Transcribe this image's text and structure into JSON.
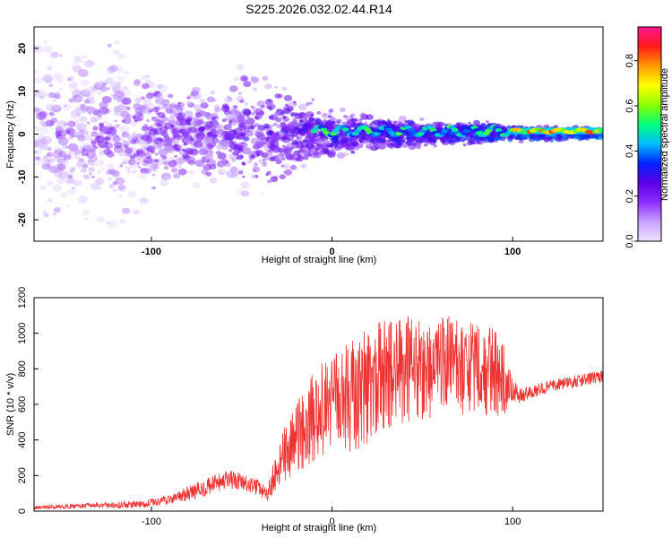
{
  "chart_data": [
    {
      "type": "heatmap",
      "title": "S225.2026.032.02.44.R14",
      "xlabel": "Height of straight line (km)",
      "ylabel": "Frequency (Hz)",
      "xlim": [
        -165,
        150
      ],
      "ylim": [
        -25,
        25
      ],
      "x_ticks": [
        -100,
        0,
        100
      ],
      "y_ticks": [
        -20,
        -10,
        0,
        10,
        20
      ],
      "x_tick_labels": [
        "-100",
        "0",
        "100"
      ],
      "y_tick_labels": [
        "-20",
        "-10",
        "0",
        "10",
        "20"
      ],
      "colorbar": {
        "label": "Normalized spectral amplitude",
        "range": [
          0,
          0.95
        ],
        "ticks": [
          0,
          0.2,
          0.4,
          0.6,
          0.8
        ],
        "tick_labels": [
          "0.0",
          "0.2",
          "0.4",
          "0.6",
          "0.8"
        ],
        "colors": [
          "#f0e5ff",
          "#c8a2ff",
          "#8b2cff",
          "#5a00e6",
          "#0022ff",
          "#00bfff",
          "#00ff7a",
          "#8cff00",
          "#ffff00",
          "#ff9900",
          "#ff1a1a",
          "#ff1493"
        ]
      },
      "ridge_frequency_hz": 0.7,
      "ridge_band": [
        0,
        1.5
      ],
      "scatter_envelope_hz": [
        [
          -165,
          24
        ],
        [
          -140,
          24
        ],
        [
          -120,
          21
        ],
        [
          -100,
          16
        ],
        [
          -80,
          12
        ],
        [
          -60,
          12
        ],
        [
          -40,
          16
        ],
        [
          -20,
          10
        ],
        [
          0,
          6
        ],
        [
          20,
          4
        ],
        [
          40,
          4
        ],
        [
          60,
          3
        ],
        [
          80,
          3
        ],
        [
          100,
          2
        ],
        [
          150,
          1.5
        ]
      ]
    },
    {
      "type": "line",
      "title": "",
      "xlabel": "Height of straight line (km)",
      "ylabel": "SNR (10 * v/v)",
      "xlim": [
        -165,
        150
      ],
      "ylim": [
        0,
        1200
      ],
      "x_ticks": [
        -100,
        0,
        100
      ],
      "y_ticks": [
        0,
        200,
        400,
        600,
        800,
        1000,
        1200
      ],
      "x_tick_labels": [
        "-100",
        "0",
        "100"
      ],
      "y_tick_labels": [
        "0",
        "200",
        "400",
        "600",
        "800",
        "1000",
        "1200"
      ],
      "series": [
        {
          "color": "#ee3333",
          "x": [
            -165,
            -150,
            -135,
            -120,
            -105,
            -95,
            -85,
            -75,
            -65,
            -55,
            -48,
            -42,
            -36,
            -30,
            -24,
            -18,
            -12,
            -6,
            0,
            6,
            12,
            18,
            24,
            30,
            36,
            42,
            48,
            54,
            60,
            66,
            72,
            78,
            84,
            90,
            96,
            100,
            104,
            110,
            120,
            130,
            140,
            150
          ],
          "y": [
            20,
            25,
            30,
            35,
            40,
            55,
            80,
            115,
            150,
            175,
            150,
            140,
            90,
            250,
            350,
            420,
            520,
            570,
            600,
            640,
            650,
            700,
            740,
            760,
            780,
            790,
            800,
            800,
            810,
            820,
            810,
            800,
            790,
            785,
            730,
            680,
            650,
            670,
            700,
            720,
            740,
            760
          ],
          "amplitude": [
            10,
            12,
            15,
            18,
            20,
            25,
            35,
            45,
            55,
            60,
            50,
            45,
            40,
            130,
            180,
            220,
            250,
            260,
            280,
            300,
            320,
            330,
            340,
            330,
            320,
            310,
            300,
            290,
            280,
            280,
            270,
            260,
            250,
            260,
            180,
            60,
            45,
            35,
            35,
            35,
            35,
            35
          ]
        }
      ]
    }
  ]
}
